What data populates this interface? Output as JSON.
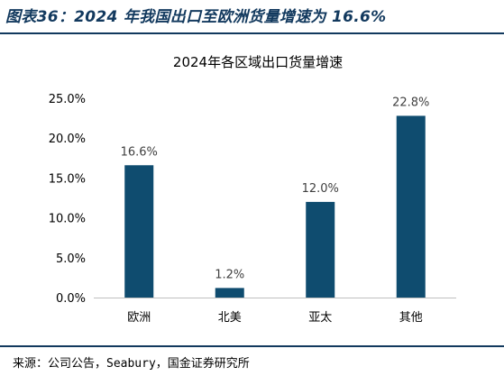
{
  "figure": {
    "title": "图表36：2024 年我国出口至欧洲货量增速为 16.6%",
    "source": "来源：公司公告，Seabury，国金证券研究所"
  },
  "colors": {
    "bar": "#0f4c6f",
    "accent_rule": "#12395e",
    "axis": "#bfbfbf"
  },
  "chart_data": {
    "type": "bar",
    "title": "2024年各区域出口货量增速",
    "categories": [
      "欧洲",
      "北美",
      "亚太",
      "其他"
    ],
    "values": [
      16.6,
      1.2,
      12.0,
      22.8
    ],
    "data_labels": [
      "16.6%",
      "1.2%",
      "12.0%",
      "22.8%"
    ],
    "ylim": [
      0,
      25
    ],
    "yticks": [
      0,
      5,
      10,
      15,
      20,
      25
    ],
    "ytick_labels": [
      "0.0%",
      "5.0%",
      "10.0%",
      "15.0%",
      "20.0%",
      "25.0%"
    ],
    "xlabel": "",
    "ylabel": "",
    "grid": false,
    "legend": "none"
  }
}
